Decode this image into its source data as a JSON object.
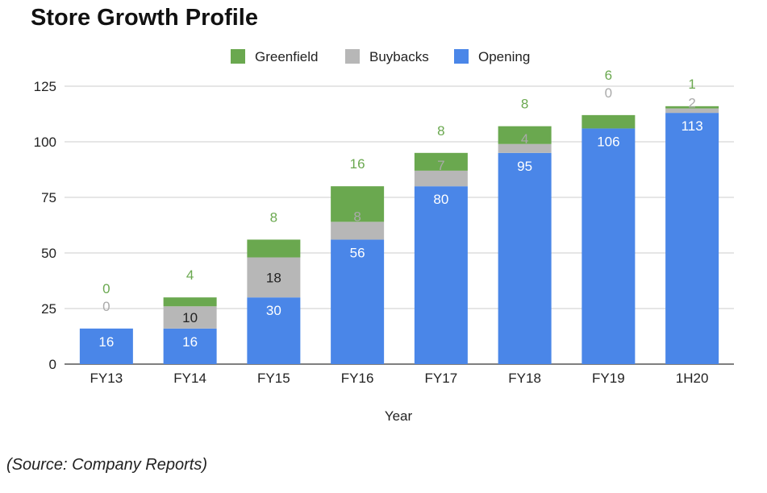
{
  "title": "Store Growth Profile",
  "source": "(Source: Company Reports)",
  "chart_data": {
    "type": "bar",
    "stacked": true,
    "title": "Store Growth Profile",
    "xlabel": "Year",
    "ylabel": "",
    "ylim": [
      0,
      125
    ],
    "yticks": [
      0,
      25,
      50,
      75,
      100,
      125
    ],
    "grid": true,
    "legend_position": "top",
    "categories": [
      "FY13",
      "FY14",
      "FY15",
      "FY16",
      "FY17",
      "FY18",
      "FY19",
      "1H20"
    ],
    "series": [
      {
        "name": "Opening",
        "color": "#4a86e8",
        "label_color": "#ffffff",
        "values": [
          16,
          16,
          30,
          56,
          80,
          95,
          106,
          113
        ],
        "labels": [
          "16",
          "16",
          "30",
          "56",
          "80",
          "95",
          "106",
          "113"
        ]
      },
      {
        "name": "Buybacks",
        "color": "#b7b7b7",
        "label_color": "#222222",
        "values": [
          0,
          10,
          18,
          8,
          7,
          4,
          0,
          2
        ],
        "labels": [
          "0",
          "10",
          "18",
          "8",
          "7",
          "4",
          "0",
          "2"
        ]
      },
      {
        "name": "Greenfield",
        "color": "#6aa84f",
        "label_color": "#6aa84f",
        "values": [
          0,
          4,
          8,
          16,
          8,
          8,
          6,
          1
        ],
        "labels": [
          "0",
          "4",
          "8",
          "16",
          "8",
          "8",
          "6",
          "1"
        ]
      }
    ],
    "legend_order": [
      "Greenfield",
      "Buybacks",
      "Opening"
    ]
  }
}
